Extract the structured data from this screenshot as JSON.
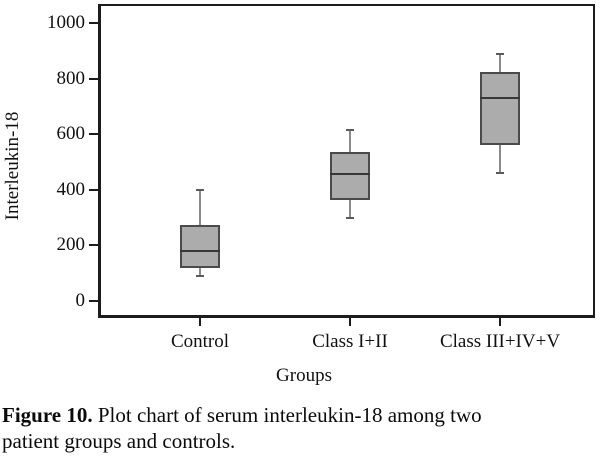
{
  "chart_data": {
    "type": "boxplot",
    "title": "",
    "xlabel": "Groups",
    "ylabel": "Interleukin-18",
    "categories": [
      "Control",
      "Class I+II",
      "Class III+IV+V"
    ],
    "yticks": [
      0,
      200,
      400,
      600,
      800,
      1000
    ],
    "ylim": [
      -61,
      1068
    ],
    "grid": false,
    "legend": "none",
    "series": [
      {
        "name": "Control",
        "min": 90,
        "q1": 120,
        "median": 180,
        "q3": 275,
        "max": 400
      },
      {
        "name": "Class I+II",
        "min": 300,
        "q1": 365,
        "median": 455,
        "q3": 535,
        "max": 615
      },
      {
        "name": "Class III+IV+V",
        "min": 460,
        "q1": 560,
        "median": 730,
        "q3": 825,
        "max": 890
      }
    ],
    "style": {
      "box_fill": "#acacac",
      "box_border": "#4b4b4b",
      "median_color": "#383838",
      "whisker_color": "#8a8a8a",
      "whisker_cap_color": "#5a5a5a",
      "axis_color": "#1c1c1c"
    }
  },
  "caption": {
    "label": "Figure 10.",
    "line1": "Plot chart of serum interleukin-18 among two",
    "line2": "patient groups and controls."
  }
}
